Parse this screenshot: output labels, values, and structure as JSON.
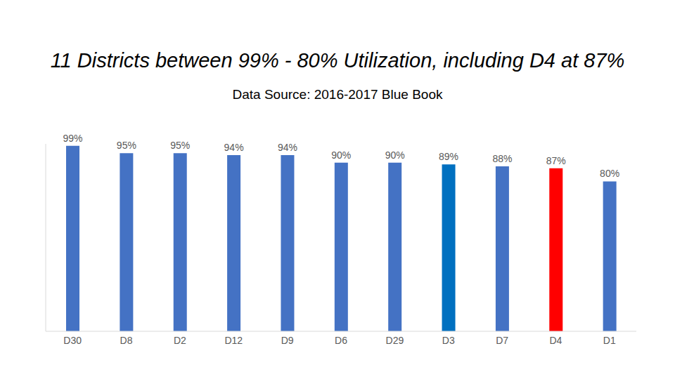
{
  "chart_data": {
    "type": "bar",
    "title": "11 Districts between 99% - 80% Utilization, including D4 at 87%",
    "subtitle": "Data Source: 2016-2017 Blue Book",
    "categories": [
      "D30",
      "D8",
      "D2",
      "D12",
      "D9",
      "D6",
      "D29",
      "D3",
      "D7",
      "D4",
      "D1"
    ],
    "values": [
      99,
      95,
      95,
      94,
      94,
      90,
      90,
      89,
      88,
      87,
      80
    ],
    "value_labels": [
      "99%",
      "95%",
      "95%",
      "94%",
      "94%",
      "90%",
      "90%",
      "89%",
      "88%",
      "87%",
      "80%"
    ],
    "colors": [
      "#4472c4",
      "#4472c4",
      "#4472c4",
      "#4472c4",
      "#4472c4",
      "#4472c4",
      "#4472c4",
      "#0070c0",
      "#4472c4",
      "#ff0000",
      "#4472c4"
    ],
    "ylim": [
      0,
      100
    ],
    "grid": false,
    "data_labels": true,
    "tick_labels": "x"
  }
}
